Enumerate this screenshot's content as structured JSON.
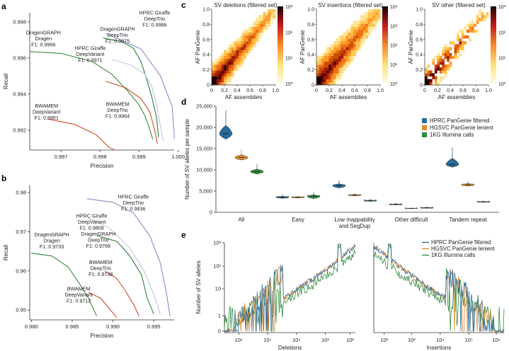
{
  "panels": {
    "a": "a",
    "b": "b",
    "c": "c",
    "d": "d",
    "e": "e"
  },
  "chart_data": [
    {
      "id": "a",
      "type": "line",
      "xlabel": "Precision",
      "ylabel": "Recall",
      "xlim": [
        0.9962,
        0.9999
      ],
      "ylim": [
        0.9909,
        0.9985
      ],
      "xticks": [
        0.997,
        0.998,
        0.999,
        1.0
      ],
      "xticklabels": [
        "0.997",
        "0.998",
        "0.999",
        "1.000"
      ],
      "yticks": [
        0.992,
        0.994,
        0.996,
        0.998
      ],
      "yticklabels": [
        "0.992",
        "0.994",
        "0.996",
        "0.998"
      ],
      "series": [
        {
          "color": "#3a8a3a",
          "points": [
            [
              0.9962,
              0.99635
            ],
            [
              0.997,
              0.99625
            ],
            [
              0.9978,
              0.9958
            ],
            [
              0.9983,
              0.9951
            ],
            [
              0.9987,
              0.9942
            ],
            [
              0.999,
              0.9934
            ],
            [
              0.99915,
              0.9928
            ],
            [
              0.99925,
              0.9922
            ],
            [
              0.99935,
              0.9915
            ]
          ]
        },
        {
          "color": "#8b8bc8",
          "points": [
            [
              0.99815,
              0.99735
            ],
            [
              0.99905,
              0.9965
            ],
            [
              0.99955,
              0.995
            ],
            [
              0.99985,
              0.9933
            ],
            [
              0.99995,
              0.9918
            ],
            [
              1.0,
              0.9915
            ]
          ]
        },
        {
          "color": "#2e7d3b",
          "points": [
            [
              0.99808,
              0.9971
            ],
            [
              0.99855,
              0.9969
            ],
            [
              0.99885,
              0.99655
            ],
            [
              0.99905,
              0.9958
            ],
            [
              0.9992,
              0.9948
            ],
            [
              0.99933,
              0.9938
            ],
            [
              0.99945,
              0.9927
            ],
            [
              0.9995,
              0.9916
            ]
          ]
        },
        {
          "color": "#c4c4e0",
          "points": [
            [
              0.9983,
              0.99592
            ],
            [
              0.9988,
              0.9956
            ],
            [
              0.99915,
              0.9951
            ],
            [
              0.99933,
              0.9944
            ],
            [
              0.99946,
              0.9933
            ],
            [
              0.99955,
              0.9922
            ],
            [
              0.99962,
              0.9914
            ]
          ]
        },
        {
          "color": "#d04a2a",
          "points": [
            [
              0.99815,
              0.9947
            ],
            [
              0.99865,
              0.99435
            ],
            [
              0.99905,
              0.99375
            ],
            [
              0.99928,
              0.993
            ],
            [
              0.9994,
              0.992
            ],
            [
              0.99947,
              0.99125
            ]
          ]
        },
        {
          "color": "#d04a2a",
          "points": [
            [
              0.99665,
              0.99262
            ],
            [
              0.99735,
              0.99232
            ],
            [
              0.9979,
              0.99175
            ],
            [
              0.99823,
              0.99105
            ],
            [
              0.99838,
              0.99065
            ]
          ]
        }
      ],
      "labels": [
        {
          "text": [
            "HPRC Giraffe",
            "DeepTrio",
            "F1: 0.9986"
          ],
          "x": 0.9994,
          "y": 0.9984,
          "align": "middle"
        },
        {
          "text": [
            "DragenGRAPH",
            "Dragen",
            "F1: 0.9966"
          ],
          "x": 0.99655,
          "y": 0.9973,
          "align": "middle"
        },
        {
          "text": [
            "DragenGRAPH",
            "DeepTrio",
            "F1: 0.9975"
          ],
          "x": 0.99845,
          "y": 0.9975,
          "align": "middle"
        },
        {
          "text": [
            "HPRC Giraffe",
            "DeepVariant",
            "F1: 0.9971"
          ],
          "x": 0.99775,
          "y": 0.99645,
          "align": "middle"
        },
        {
          "text": [
            "BWAMEM",
            "DeepVariant",
            "F1: 0.9951"
          ],
          "x": 0.99663,
          "y": 0.99325,
          "align": "middle"
        },
        {
          "text": [
            "BWAMEM",
            "DeepTrio",
            "F1: 0.9964"
          ],
          "x": 0.99845,
          "y": 0.99335,
          "align": "middle"
        }
      ]
    },
    {
      "id": "b",
      "type": "line",
      "xlabel": "Precision",
      "ylabel": "Recall",
      "xlim": [
        0.9798,
        0.9975
      ],
      "ylim": [
        0.9475,
        0.9818
      ],
      "xticks": [
        0.98,
        0.985,
        0.99,
        0.995
      ],
      "xticklabels": [
        "0.980",
        "0.985",
        "0.990",
        "0.995"
      ],
      "yticks": [
        0.95,
        0.96,
        0.97,
        0.98
      ],
      "yticklabels": [
        "0.95",
        "0.96",
        "0.97",
        "0.98"
      ],
      "series": [
        {
          "color": "#8b8bc8",
          "points": [
            [
              0.9868,
              0.9784
            ],
            [
              0.99,
              0.9775
            ],
            [
              0.9925,
              0.9748
            ],
            [
              0.9945,
              0.969
            ],
            [
              0.9958,
              0.962
            ],
            [
              0.9965,
              0.955
            ],
            [
              0.997,
              0.9485
            ]
          ]
        },
        {
          "color": "#c4c4e0",
          "points": [
            [
              0.987,
              0.9735
            ],
            [
              0.9895,
              0.971
            ],
            [
              0.992,
              0.966
            ],
            [
              0.9938,
              0.96
            ],
            [
              0.995,
              0.954
            ],
            [
              0.9958,
              0.949
            ]
          ]
        },
        {
          "color": "#2e7d3b",
          "points": [
            [
              0.988,
              0.969
            ],
            [
              0.9905,
              0.9675
            ],
            [
              0.992,
              0.964
            ],
            [
              0.9935,
              0.959
            ],
            [
              0.9942,
              0.953
            ],
            [
              0.995,
              0.949
            ]
          ]
        },
        {
          "color": "#3a8a3a",
          "points": [
            [
              0.98,
              0.9645
            ],
            [
              0.9825,
              0.9638
            ],
            [
              0.9845,
              0.961
            ],
            [
              0.9858,
              0.957
            ],
            [
              0.987,
              0.953
            ],
            [
              0.988,
              0.9485
            ]
          ]
        },
        {
          "color": "#d04a2a",
          "points": [
            [
              0.989,
              0.96
            ],
            [
              0.9905,
              0.958
            ],
            [
              0.9915,
              0.955
            ],
            [
              0.9925,
              0.9515
            ],
            [
              0.9932,
              0.9485
            ]
          ]
        },
        {
          "color": "#d04a2a",
          "points": [
            [
              0.987,
              0.9545
            ],
            [
              0.9885,
              0.953
            ],
            [
              0.9895,
              0.9505
            ],
            [
              0.9905,
              0.948
            ]
          ]
        }
      ],
      "labels": [
        {
          "text": [
            "HPRC Giraffe",
            "DeepTrio",
            "F1: 0.9836"
          ],
          "x": 0.9925,
          "y": 0.9785,
          "align": "middle"
        },
        {
          "text": [
            "HPRC Giraffe",
            "DeepVariant",
            "F1: 0.9809"
          ],
          "x": 0.9874,
          "y": 0.9736,
          "align": "middle"
        },
        {
          "text": [
            "DragenGRAPH",
            "Dragen",
            "F1: 0.9733"
          ],
          "x": 0.9825,
          "y": 0.9688,
          "align": "middle"
        },
        {
          "text": [
            "DragenGRAPH",
            "DeepTrio",
            "F1: 0.9768"
          ],
          "x": 0.9882,
          "y": 0.969,
          "align": "middle"
        },
        {
          "text": [
            "BWAMEM",
            "DeepTrio",
            "F1: 0.9738"
          ],
          "x": 0.9885,
          "y": 0.9618,
          "align": "middle"
        },
        {
          "text": [
            "BWAMEM",
            "DeepVariant",
            "F1: 0.9712"
          ],
          "x": 0.9858,
          "y": 0.955,
          "align": "middle"
        }
      ]
    },
    {
      "id": "c",
      "type": "heatmap",
      "xlabel": "AF assemblies",
      "ylabel": "AF PanGenie",
      "xlim": [
        0,
        1
      ],
      "ylim": [
        0,
        1
      ],
      "xticklabels": [
        "0",
        "0.2",
        "0.4",
        "0.6",
        "0.8",
        "1.0"
      ],
      "yticklabels": [
        "0",
        "0.2",
        "0.4",
        "0.6",
        "0.8",
        "1.0"
      ],
      "panels": [
        {
          "title": "SV deletions (filtered set)",
          "color_max_exp": 3,
          "color_ticks": [
            "10⁰",
            "10¹",
            "10²",
            "10³"
          ],
          "spread": 0.12,
          "density": 1.0
        },
        {
          "title": "SV insertions (filtered set)",
          "color_max_exp": 4,
          "color_ticks": [
            "10⁰",
            "10¹",
            "10²",
            "10³",
            "10⁴"
          ],
          "spread": 0.15,
          "density": 1.0
        },
        {
          "title": "SV other (filtered set)",
          "color_max_exp": 3,
          "color_ticks": [
            "10⁰",
            "10¹",
            "10²",
            "10³"
          ],
          "spread": 0.1,
          "density": 0.55
        }
      ]
    },
    {
      "id": "d",
      "type": "violin",
      "ylabel": "Number of SV alleles per sample",
      "ylim": [
        0,
        25000
      ],
      "yticks": [
        0,
        5000,
        10000,
        15000,
        20000,
        25000
      ],
      "yticklabels": [
        "0",
        "5,000",
        "10,000",
        "15,000",
        "20,000",
        "25,000"
      ],
      "categories": [
        "All",
        "Easy",
        "Low mappability\nand SegDup",
        "Other difficult",
        "Tandem repeat"
      ],
      "legend": [
        "HPRC PanGenie filtered",
        "HGSVC PanGenie lenient",
        "1KG Illumina calls"
      ],
      "colors": [
        "#2b6a99",
        "#e08a2b",
        "#2e8b3e"
      ],
      "series": [
        {
          "name": "HPRC PanGenie filtered",
          "values": [
            18500,
            3600,
            6300,
            1900,
            11300
          ],
          "min": [
            17000,
            3200,
            5600,
            1700,
            10500
          ],
          "max": [
            24000,
            4200,
            7600,
            2200,
            15300
          ]
        },
        {
          "name": "HGSVC PanGenie lenient",
          "values": [
            12900,
            3600,
            4100,
            950,
            6500
          ],
          "min": [
            12200,
            3300,
            3800,
            850,
            6100
          ],
          "max": [
            14800,
            3900,
            4500,
            1050,
            7400
          ]
        },
        {
          "name": "1KG Illumina calls",
          "values": [
            9600,
            3800,
            2800,
            1100,
            2500
          ],
          "min": [
            8900,
            3100,
            2500,
            900,
            2300
          ],
          "max": [
            11300,
            4800,
            3100,
            1300,
            2700
          ]
        }
      ]
    },
    {
      "id": "e",
      "type": "line",
      "ylabel": "Number of SV alleles",
      "xlabel_left": "Deletions",
      "xlabel_right": "Insertions",
      "left_xticks": [
        "10⁶",
        "10⁵",
        "10⁴",
        "10³",
        "10²"
      ],
      "right_xticks": [
        "10²",
        "10³",
        "10⁴",
        "10⁵",
        "10⁶"
      ],
      "yticks": [
        "0",
        "1",
        "10",
        "10²",
        "10³"
      ],
      "legend": [
        "HPRC PanGenie filtered",
        "HGSVC PanGenie lenient",
        "1KG Illumina calls"
      ],
      "colors": [
        "#2b6a99",
        "#e08a2b",
        "#2e8b3e"
      ]
    }
  ]
}
